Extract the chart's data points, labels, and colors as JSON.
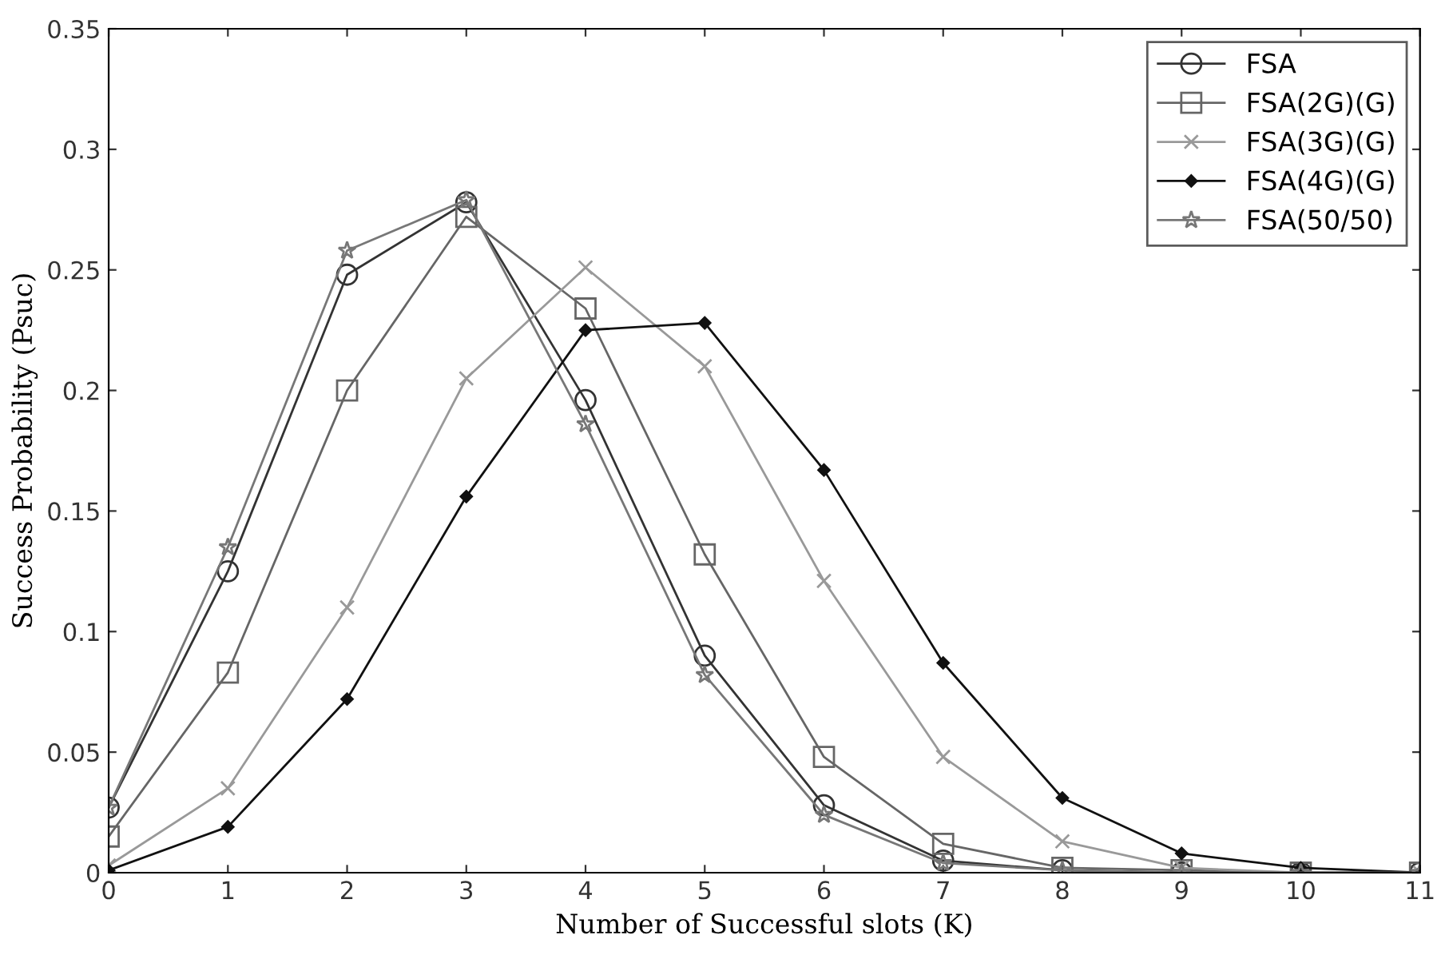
{
  "chart_data": {
    "type": "line",
    "xlabel": "Number of Successful slots (K)",
    "ylabel": "Success Probability (Psuc)",
    "x": [
      0,
      1,
      2,
      3,
      4,
      5,
      6,
      7,
      8,
      9,
      10,
      11
    ],
    "xlim": [
      0,
      11
    ],
    "xticks": [
      0,
      1,
      2,
      3,
      4,
      5,
      6,
      7,
      8,
      9,
      10,
      11
    ],
    "ylim": [
      0,
      0.35
    ],
    "yticks": [
      0,
      0.05,
      0.1,
      0.15,
      0.2,
      0.25,
      0.3,
      0.35
    ],
    "legend": "top right",
    "grid": false,
    "line_style": "solid",
    "series": [
      {
        "name": "FSA",
        "color": "#333333",
        "marker": "circle",
        "values": [
          0.027,
          0.125,
          0.248,
          0.278,
          0.196,
          0.09,
          0.028,
          0.005,
          0.001,
          0,
          0,
          0
        ]
      },
      {
        "name": "FSA(2G)(G)",
        "color": "#666666",
        "marker": "square",
        "values": [
          0.015,
          0.083,
          0.2,
          0.272,
          0.234,
          0.132,
          0.048,
          0.012,
          0.002,
          0.001,
          0,
          0
        ]
      },
      {
        "name": "FSA(3G)(G)",
        "color": "#999999",
        "marker": "cross",
        "values": [
          0.003,
          0.035,
          0.11,
          0.205,
          0.251,
          0.21,
          0.121,
          0.048,
          0.013,
          0.002,
          0,
          0
        ]
      },
      {
        "name": "FSA(4G)(G)",
        "color": "#111111",
        "marker": "diamond",
        "values": [
          0.001,
          0.019,
          0.072,
          0.156,
          0.225,
          0.228,
          0.167,
          0.087,
          0.031,
          0.008,
          0.002,
          0
        ]
      },
      {
        "name": "FSA(50/50)",
        "color": "#777777",
        "marker": "star",
        "values": [
          0.027,
          0.135,
          0.258,
          0.279,
          0.186,
          0.082,
          0.024,
          0.004,
          0.001,
          0,
          0,
          0
        ]
      }
    ]
  }
}
